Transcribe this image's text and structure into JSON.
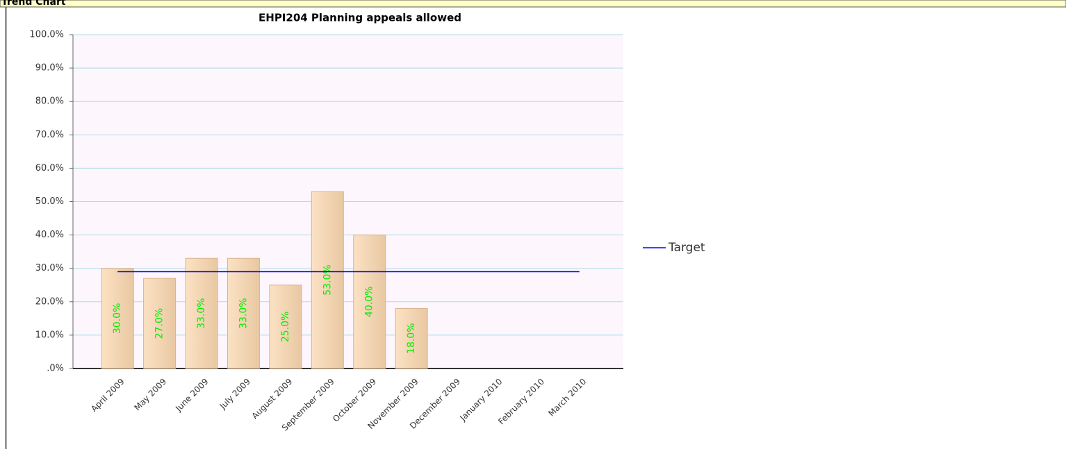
{
  "header": {
    "title": "Trend Chart"
  },
  "chart_data": {
    "type": "bar",
    "title": "EHPI204 Planning appeals allowed",
    "categories": [
      "April 2009",
      "May 2009",
      "June 2009",
      "July 2009",
      "August 2009",
      "September 2009",
      "October 2009",
      "November 2009",
      "December 2009",
      "January 2010",
      "February 2010",
      "March 2010"
    ],
    "values": [
      30,
      27,
      33,
      33,
      25,
      53,
      40,
      18,
      null,
      null,
      null,
      null
    ],
    "value_labels": [
      "30.0%",
      "27.0%",
      "33.0%",
      "33.0%",
      "25.0%",
      "53.0%",
      "40.0%",
      "18.0%",
      null,
      null,
      null,
      null
    ],
    "color": "#f6d8b4",
    "series": [
      {
        "name": "Target",
        "color": "#0000ff",
        "values": [
          29,
          29,
          29,
          29,
          29,
          29,
          29,
          29,
          29,
          29,
          29,
          29
        ]
      }
    ],
    "ylim": [
      0,
      100
    ],
    "yticks": [
      {
        "value": 0,
        "label": ".0%"
      },
      {
        "value": 10,
        "label": "10.0%"
      },
      {
        "value": 20,
        "label": "20.0%"
      },
      {
        "value": 30,
        "label": "30.0%"
      },
      {
        "value": 40,
        "label": "40.0%"
      },
      {
        "value": 50,
        "label": "50.0%"
      },
      {
        "value": 60,
        "label": "60.0%"
      },
      {
        "value": 70,
        "label": "70.0%"
      },
      {
        "value": 80,
        "label": "80.0%"
      },
      {
        "value": 90,
        "label": "90.0%"
      },
      {
        "value": 100,
        "label": "100.0%"
      }
    ],
    "grid": true,
    "legend": "right"
  }
}
